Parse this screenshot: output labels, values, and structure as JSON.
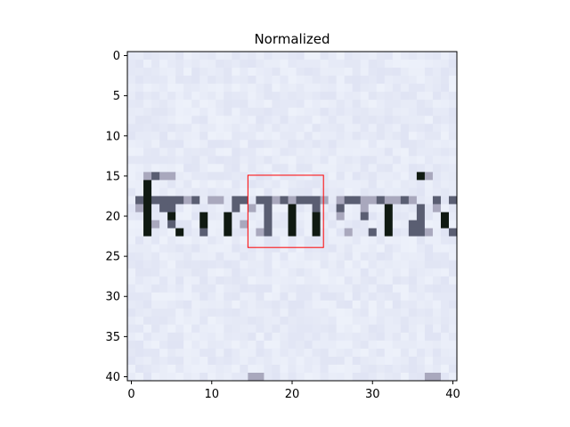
{
  "chart_data": {
    "type": "heatmap",
    "title": "Normalized",
    "xlabel": "",
    "ylabel": "",
    "width": 41,
    "height": 41,
    "xlim": [
      -0.5,
      40.5
    ],
    "ylim": [
      40.5,
      -0.5
    ],
    "x_ticks": [
      0,
      10,
      20,
      30,
      40
    ],
    "y_ticks": [
      0,
      5,
      10,
      15,
      20,
      25,
      30,
      35,
      40
    ],
    "x_tick_labels": [
      "0",
      "10",
      "20",
      "30",
      "40"
    ],
    "y_tick_labels": [
      "0",
      "5",
      "10",
      "15",
      "20",
      "25",
      "30",
      "35",
      "40"
    ],
    "background_color": "#e6ecf8",
    "glyph_dark_color": "#101a12",
    "glyph_mid_color": "#5a5e72",
    "glyph_light_color": "#a9a8bd",
    "grid": false,
    "rectangle": {
      "x_start": 14.5,
      "y_start": 14.9,
      "x_end": 23.9,
      "y_end": 23.9,
      "color": "#ff0000"
    },
    "dark_cells": [
      [
        2,
        16
      ],
      [
        2,
        17
      ],
      [
        2,
        18
      ],
      [
        2,
        19
      ],
      [
        2,
        20
      ],
      [
        2,
        21
      ],
      [
        2,
        22
      ],
      [
        5,
        20
      ],
      [
        6,
        22
      ],
      [
        9,
        20
      ],
      [
        9,
        21
      ],
      [
        12,
        20
      ],
      [
        12,
        21
      ],
      [
        12,
        22
      ],
      [
        20,
        19
      ],
      [
        20,
        20
      ],
      [
        20,
        21
      ],
      [
        20,
        22
      ],
      [
        23,
        20
      ],
      [
        23,
        21
      ],
      [
        23,
        22
      ],
      [
        32,
        19
      ],
      [
        32,
        20
      ],
      [
        32,
        21
      ],
      [
        32,
        22
      ],
      [
        36,
        15
      ],
      [
        39,
        20
      ],
      [
        39,
        21
      ]
    ],
    "mid_cells": [
      [
        3,
        15
      ],
      [
        4,
        18
      ],
      [
        4,
        19
      ],
      [
        1,
        18
      ],
      [
        3,
        18
      ],
      [
        5,
        18
      ],
      [
        5,
        19
      ],
      [
        5,
        21
      ],
      [
        6,
        18
      ],
      [
        8,
        18
      ],
      [
        9,
        22
      ],
      [
        13,
        18
      ],
      [
        13,
        19
      ],
      [
        14,
        18
      ],
      [
        16,
        18
      ],
      [
        17,
        18
      ],
      [
        17,
        19
      ],
      [
        17,
        20
      ],
      [
        17,
        21
      ],
      [
        17,
        22
      ],
      [
        19,
        18
      ],
      [
        21,
        18
      ],
      [
        22,
        18
      ],
      [
        23,
        18
      ],
      [
        23,
        19
      ],
      [
        26,
        19
      ],
      [
        27,
        18
      ],
      [
        28,
        18
      ],
      [
        29,
        20
      ],
      [
        30,
        22
      ],
      [
        31,
        18
      ],
      [
        34,
        18
      ],
      [
        35,
        21
      ],
      [
        35,
        22
      ],
      [
        36,
        19
      ],
      [
        36,
        20
      ],
      [
        36,
        21
      ],
      [
        36,
        22
      ],
      [
        38,
        18
      ],
      [
        40,
        18
      ],
      [
        40,
        22
      ]
    ],
    "light_cells": [
      [
        4,
        15
      ],
      [
        5,
        15
      ],
      [
        2,
        15
      ],
      [
        1,
        19
      ],
      [
        3,
        21
      ],
      [
        7,
        18
      ],
      [
        10,
        18
      ],
      [
        11,
        18
      ],
      [
        16,
        22
      ],
      [
        18,
        18
      ],
      [
        20,
        18
      ],
      [
        26,
        18
      ],
      [
        29,
        18
      ],
      [
        29,
        19
      ],
      [
        30,
        18
      ],
      [
        32,
        18
      ],
      [
        33,
        18
      ],
      [
        35,
        18
      ],
      [
        37,
        15
      ],
      [
        38,
        19
      ],
      [
        24,
        18
      ],
      [
        15,
        19
      ],
      [
        26,
        20
      ],
      [
        27,
        22
      ],
      [
        14,
        21
      ],
      [
        37,
        22
      ],
      [
        15,
        40
      ],
      [
        16,
        40
      ],
      [
        37,
        40
      ],
      [
        38,
        40
      ]
    ]
  }
}
